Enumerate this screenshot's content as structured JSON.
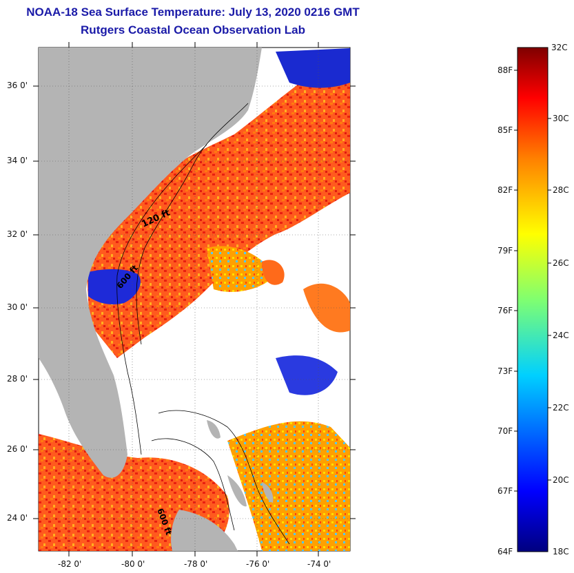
{
  "header": {
    "title": "NOAA-18 Sea Surface Temperature:  July 13, 2020 0216 GMT",
    "subtitle": "Rutgers Coastal Ocean Observation Lab"
  },
  "map": {
    "region": "US Southeast coast and Bahamas",
    "lat_ticks": [
      "36 0'",
      "34 0'",
      "32 0'",
      "30 0'",
      "28 0'",
      "26 0'",
      "24 0'"
    ],
    "lon_ticks": [
      "-82 0'",
      "-80 0'",
      "-78 0'",
      "-76 0'",
      "-74 0'"
    ],
    "isobath_labels": [
      "120 ft",
      "600 ft",
      "600 ft"
    ],
    "colors": {
      "land": "#b4b4b4",
      "no_data": "#ffffff",
      "warm": "#e8361c",
      "cold": "#1428c8"
    }
  },
  "colorbar": {
    "celsius_labels": [
      "32C",
      "30C",
      "28C",
      "26C",
      "24C",
      "22C",
      "20C",
      "18C"
    ],
    "fahrenheit_labels": [
      "88F",
      "85F",
      "82F",
      "79F",
      "76F",
      "73F",
      "70F",
      "67F",
      "64F"
    ],
    "min_c": 18,
    "max_c": 32
  }
}
